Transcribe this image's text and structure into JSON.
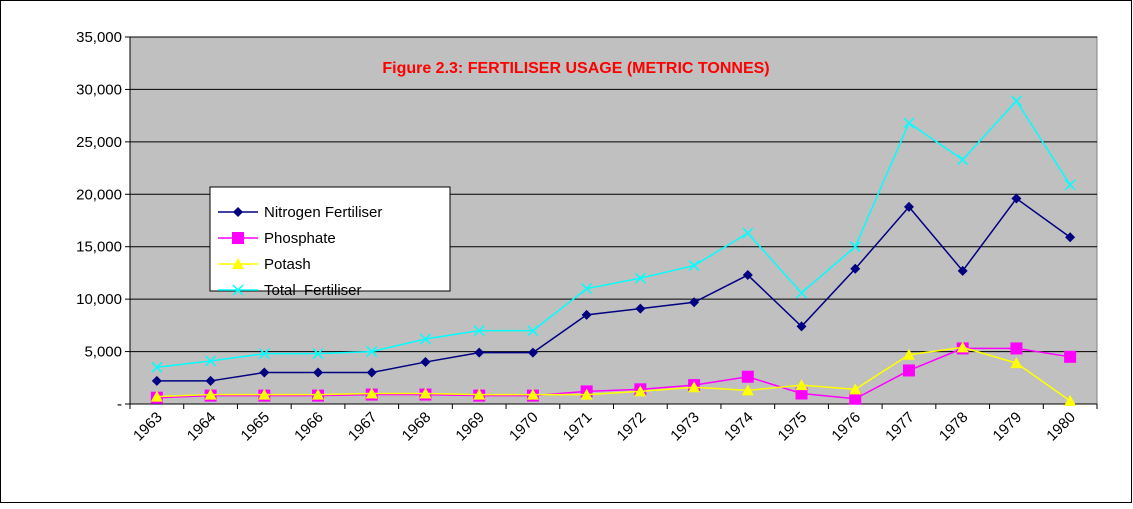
{
  "chart_data": {
    "type": "line",
    "title": "Figure 2.3: FERTILISER USAGE (METRIC TONNES)",
    "categories": [
      "1963",
      "1964",
      "1965",
      "1966",
      "1967",
      "1968",
      "1969",
      "1970",
      "1971",
      "1972",
      "1973",
      "1974",
      "1975",
      "1976",
      "1977",
      "1978",
      "1979",
      "1980"
    ],
    "series": [
      {
        "name": "Nitrogen Fertiliser",
        "color": "#000080",
        "marker": "diamond",
        "values": [
          2200,
          2200,
          3000,
          3000,
          3000,
          4000,
          4900,
          4900,
          8500,
          9100,
          9700,
          12300,
          7400,
          12900,
          18800,
          12700,
          19600,
          15900
        ]
      },
      {
        "name": "Phosphate",
        "color": "#ff00ff",
        "marker": "square",
        "values": [
          600,
          800,
          800,
          800,
          900,
          900,
          800,
          800,
          1200,
          1400,
          1800,
          2600,
          1000,
          500,
          3200,
          5300,
          5300,
          4500
        ]
      },
      {
        "name": "Potash",
        "color": "#ffff00",
        "marker": "triangle",
        "values": [
          700,
          900,
          900,
          900,
          1000,
          1000,
          900,
          900,
          900,
          1200,
          1600,
          1300,
          1800,
          1400,
          4700,
          5400,
          3900,
          300
        ]
      },
      {
        "name": "Total  Fertiliser",
        "color": "#00ffff",
        "marker": "x",
        "values": [
          3500,
          4100,
          4800,
          4800,
          5000,
          6200,
          7000,
          7000,
          11000,
          12000,
          13200,
          16300,
          10600,
          15000,
          26800,
          23300,
          28900,
          20900
        ]
      }
    ],
    "ylim": [
      0,
      35000
    ],
    "yticks": [
      {
        "value": 0,
        "label": "-"
      },
      {
        "value": 5000,
        "label": "5,000"
      },
      {
        "value": 10000,
        "label": "10,000"
      },
      {
        "value": 15000,
        "label": "15,000"
      },
      {
        "value": 20000,
        "label": "20,000"
      },
      {
        "value": 25000,
        "label": "25,000"
      },
      {
        "value": 30000,
        "label": "30,000"
      },
      {
        "value": 35000,
        "label": "35,000"
      }
    ],
    "grid": true
  }
}
